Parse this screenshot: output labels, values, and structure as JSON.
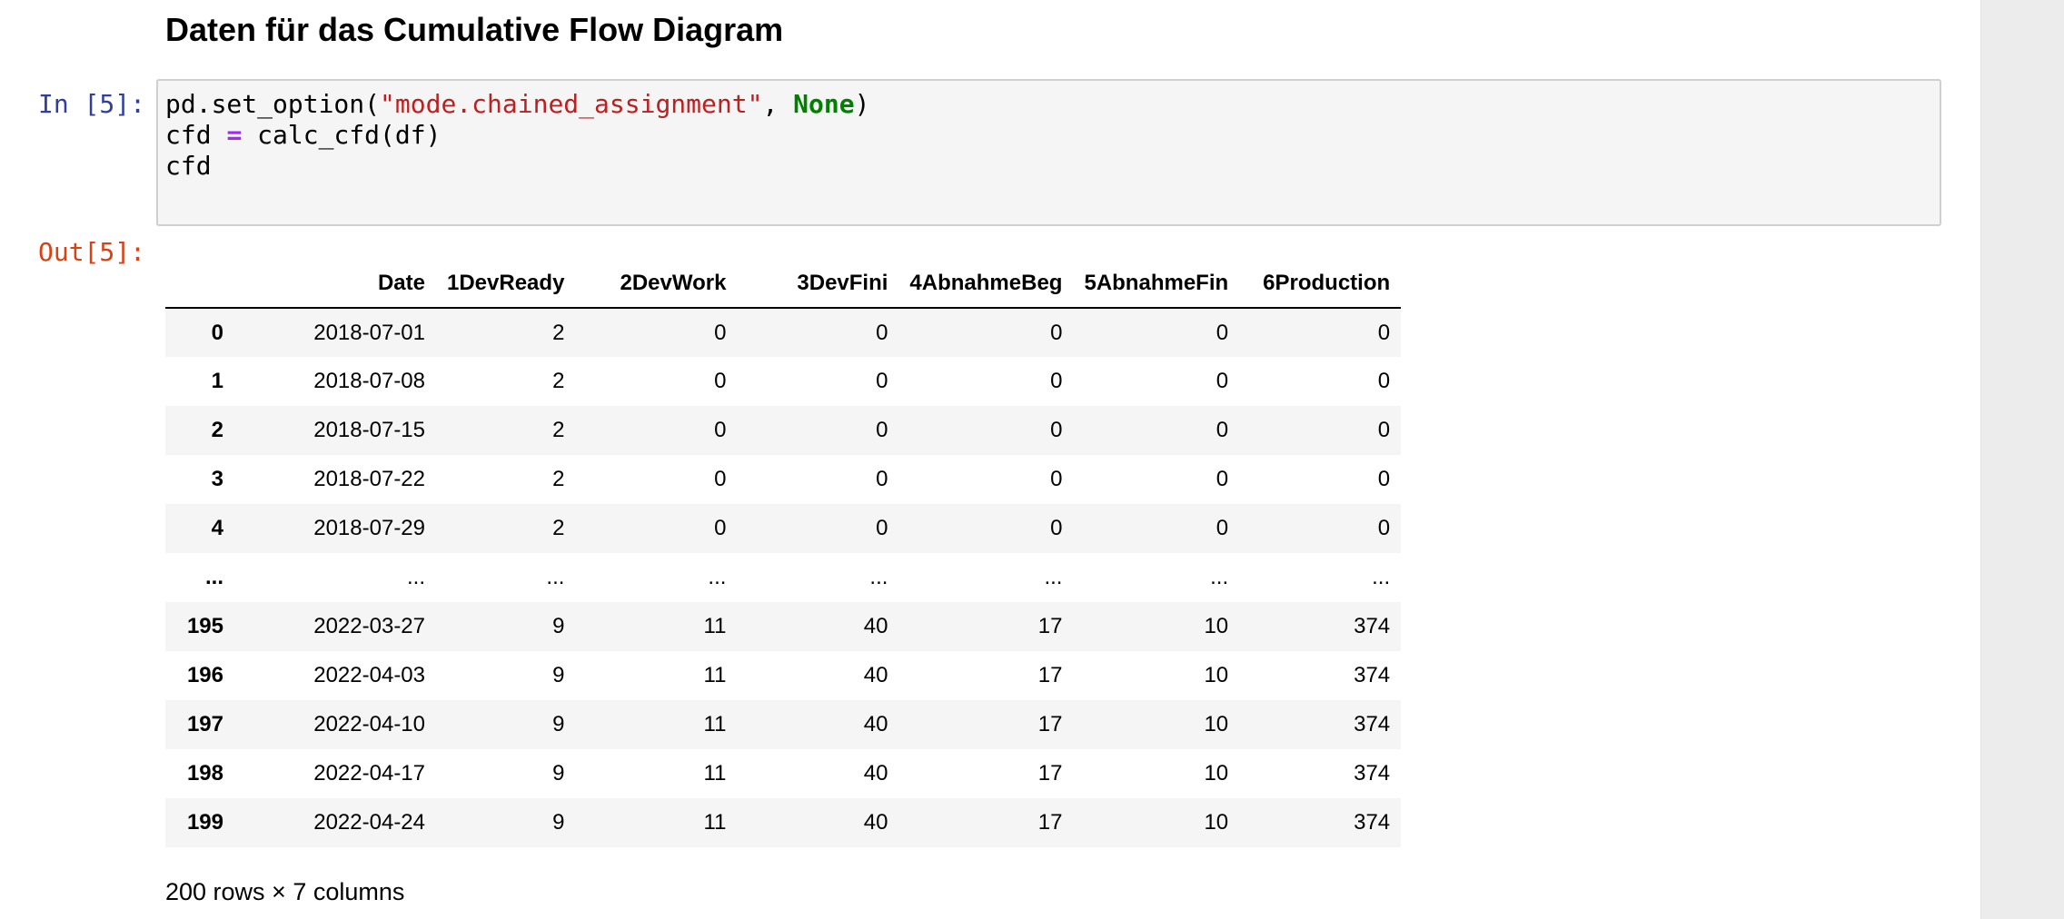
{
  "heading": "Daten für das Cumulative Flow Diagram",
  "input_cell": {
    "prompt": "In [5]:",
    "code": {
      "line1": {
        "p1": "pd.set_option(",
        "str": "\"mode.chained_assignment\"",
        "p2": ", ",
        "kw": "None",
        "p3": ")"
      },
      "line2": {
        "p1": "cfd ",
        "op": "=",
        "p2": " calc_cfd(df)"
      },
      "line3": "cfd"
    }
  },
  "output_cell": {
    "prompt": "Out[5]:",
    "table": {
      "columns": [
        "",
        "Date",
        "1DevReady",
        "2DevWork",
        "3DevFini",
        "4AbnahmeBeg",
        "5AbnahmeFin",
        "6Production"
      ],
      "rows": [
        [
          "0",
          "2018-07-01",
          "2",
          "0",
          "0",
          "0",
          "0",
          "0"
        ],
        [
          "1",
          "2018-07-08",
          "2",
          "0",
          "0",
          "0",
          "0",
          "0"
        ],
        [
          "2",
          "2018-07-15",
          "2",
          "0",
          "0",
          "0",
          "0",
          "0"
        ],
        [
          "3",
          "2018-07-22",
          "2",
          "0",
          "0",
          "0",
          "0",
          "0"
        ],
        [
          "4",
          "2018-07-29",
          "2",
          "0",
          "0",
          "0",
          "0",
          "0"
        ],
        [
          "...",
          "...",
          "...",
          "...",
          "...",
          "...",
          "...",
          "..."
        ],
        [
          "195",
          "2022-03-27",
          "9",
          "11",
          "40",
          "17",
          "10",
          "374"
        ],
        [
          "196",
          "2022-04-03",
          "9",
          "11",
          "40",
          "17",
          "10",
          "374"
        ],
        [
          "197",
          "2022-04-10",
          "9",
          "11",
          "40",
          "17",
          "10",
          "374"
        ],
        [
          "198",
          "2022-04-17",
          "9",
          "11",
          "40",
          "17",
          "10",
          "374"
        ],
        [
          "199",
          "2022-04-24",
          "9",
          "11",
          "40",
          "17",
          "10",
          "374"
        ]
      ]
    },
    "summary": "200 rows × 7 columns"
  },
  "colors": {
    "in_prompt": "#303f9f",
    "out_prompt": "#d84315",
    "string": "#ba2121",
    "keyword": "#008000",
    "operator": "#aa22ff"
  }
}
